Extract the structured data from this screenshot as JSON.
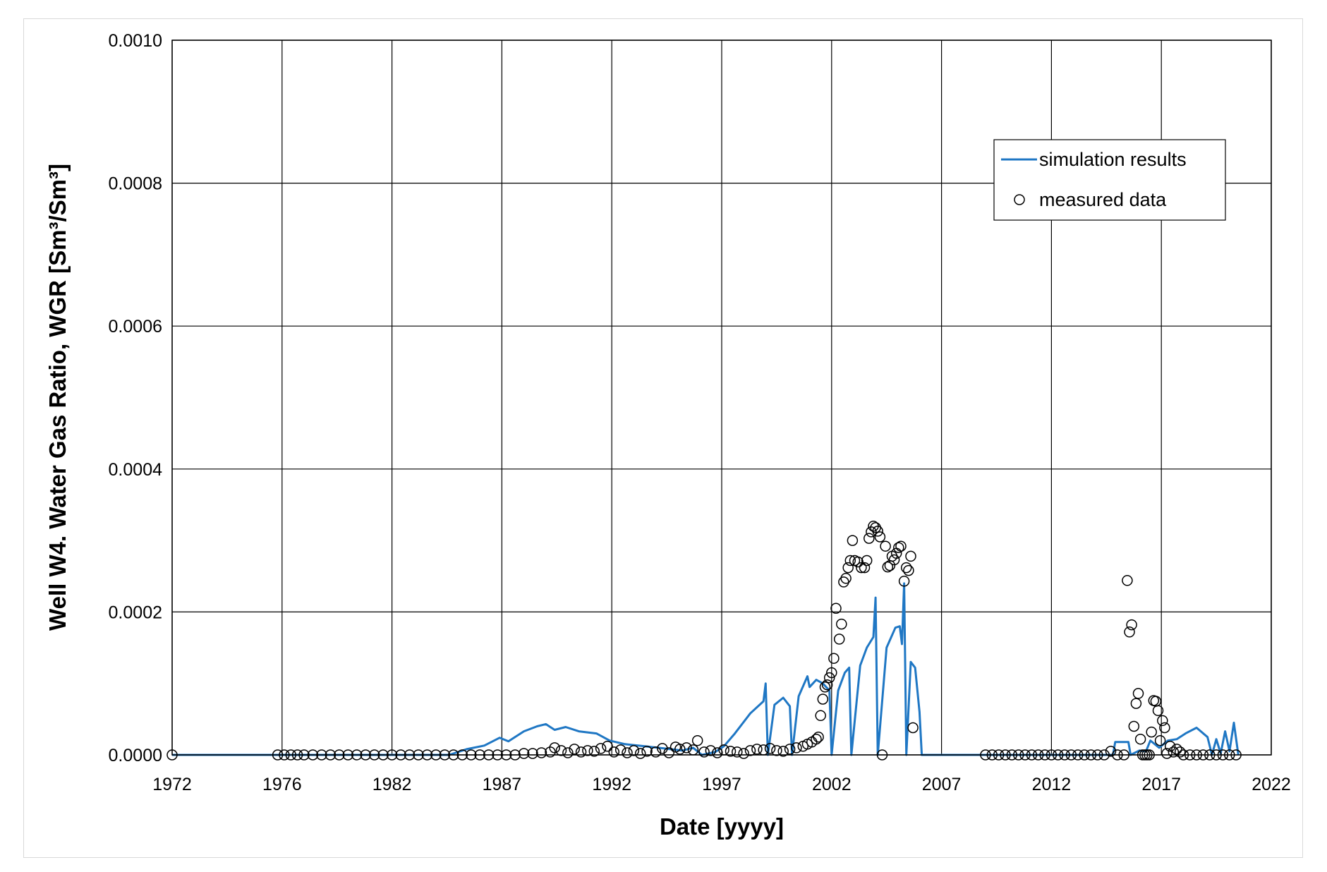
{
  "chart_data": {
    "type": "line",
    "title": "",
    "xlabel": "Date [yyyy]",
    "ylabel": "Well W4. Water Gas Ratio, WGR [Sm³/Sm³]",
    "xlim": [
      1972,
      2022
    ],
    "ylim": [
      0,
      0.001
    ],
    "x_ticks": [
      "1972",
      "1976",
      "1982",
      "1987",
      "1992",
      "1997",
      "2002",
      "2007",
      "2012",
      "2017",
      "2022"
    ],
    "y_ticks": [
      "0.0000",
      "0.0002",
      "0.0004",
      "0.0006",
      "0.0008",
      "0.0010"
    ],
    "grid": true,
    "legend_position": "top-right",
    "series": [
      {
        "name": "simulation results",
        "style": "line",
        "color": "#1f77c4",
        "points": [
          [
            1972.0,
            0
          ],
          [
            1976.9,
            0
          ],
          [
            1984.6,
            0
          ],
          [
            1985.4,
            8e-06
          ],
          [
            1986.2,
            1.3e-05
          ],
          [
            1986.9,
            2.4e-05
          ],
          [
            1987.3,
            1.9e-05
          ],
          [
            1988.0,
            3.3e-05
          ],
          [
            1988.6,
            4e-05
          ],
          [
            1989.0,
            4.3e-05
          ],
          [
            1989.4,
            3.5e-05
          ],
          [
            1989.9,
            3.9e-05
          ],
          [
            1990.5,
            3.3e-05
          ],
          [
            1991.3,
            3e-05
          ],
          [
            1991.9,
            2e-05
          ],
          [
            1992.6,
            1.5e-05
          ],
          [
            1993.5,
            1.2e-05
          ],
          [
            1994.4,
            9e-06
          ],
          [
            1995.2,
            6e-06
          ],
          [
            1995.7,
            1e-05
          ],
          [
            1996.1,
            0.0
          ],
          [
            1996.7,
            4e-06
          ],
          [
            1997.1,
            1.2e-05
          ],
          [
            1997.6,
            3e-05
          ],
          [
            1998.3,
            5.8e-05
          ],
          [
            1998.9,
            7.5e-05
          ],
          [
            1999.0,
            0.0001
          ],
          [
            1999.1,
            0.0
          ],
          [
            1999.4,
            7e-05
          ],
          [
            1999.8,
            8e-05
          ],
          [
            2000.1,
            6.8e-05
          ],
          [
            2000.2,
            0.0
          ],
          [
            2000.5,
            8.2e-05
          ],
          [
            2000.9,
            0.00011
          ],
          [
            2001.0,
            9.5e-05
          ],
          [
            2001.3,
            0.000105
          ],
          [
            2001.6,
            0.0001
          ],
          [
            2001.9,
            9e-05
          ],
          [
            2002.0,
            0.0
          ],
          [
            2002.3,
            9e-05
          ],
          [
            2002.6,
            0.000115
          ],
          [
            2002.8,
            0.000122
          ],
          [
            2002.9,
            0.0
          ],
          [
            2003.3,
            0.000125
          ],
          [
            2003.6,
            0.00015
          ],
          [
            2003.9,
            0.000165
          ],
          [
            2004.0,
            0.00022
          ],
          [
            2004.1,
            0.0
          ],
          [
            2004.5,
            0.00015
          ],
          [
            2004.9,
            0.000178
          ],
          [
            2005.1,
            0.00018
          ],
          [
            2005.2,
            0.000155
          ],
          [
            2005.3,
            0.00024
          ],
          [
            2005.4,
            0.0
          ],
          [
            2005.6,
            0.00013
          ],
          [
            2005.8,
            0.000122
          ],
          [
            2006.0,
            6e-05
          ],
          [
            2006.1,
            0.0
          ],
          [
            2009.0,
            0.0
          ],
          [
            2014.8,
            0.0
          ],
          [
            2014.9,
            1.8e-05
          ],
          [
            2015.5,
            1.8e-05
          ],
          [
            2015.6,
            0.0
          ],
          [
            2016.0,
            6e-06
          ],
          [
            2016.3,
            5e-06
          ],
          [
            2016.5,
            2e-05
          ],
          [
            2016.9,
            1e-05
          ],
          [
            2017.3,
            2e-05
          ],
          [
            2017.7,
            2.2e-05
          ],
          [
            2018.1,
            3e-05
          ],
          [
            2018.6,
            3.8e-05
          ],
          [
            2019.1,
            2.5e-05
          ],
          [
            2019.3,
            0.0
          ],
          [
            2019.5,
            2.2e-05
          ],
          [
            2019.7,
            2e-06
          ],
          [
            2019.9,
            3.3e-05
          ],
          [
            2020.1,
            5e-06
          ],
          [
            2020.3,
            4.5e-05
          ],
          [
            2020.5,
            0.0
          ]
        ]
      },
      {
        "name": "measured data",
        "style": "marker",
        "marker": "open-circle",
        "color": "#000000",
        "points": [
          [
            1972.0,
            0
          ],
          [
            1976.8,
            0
          ],
          [
            1977.1,
            0
          ],
          [
            1977.4,
            0
          ],
          [
            1977.7,
            0
          ],
          [
            1978.0,
            0
          ],
          [
            1978.4,
            0
          ],
          [
            1978.8,
            0
          ],
          [
            1979.2,
            0
          ],
          [
            1979.6,
            0
          ],
          [
            1980.0,
            0
          ],
          [
            1980.4,
            0
          ],
          [
            1980.8,
            0
          ],
          [
            1981.2,
            0
          ],
          [
            1981.6,
            0
          ],
          [
            1982.0,
            0
          ],
          [
            1982.4,
            0
          ],
          [
            1982.8,
            0
          ],
          [
            1983.2,
            0
          ],
          [
            1983.6,
            0
          ],
          [
            1984.0,
            0
          ],
          [
            1984.4,
            0
          ],
          [
            1984.8,
            0
          ],
          [
            1985.2,
            0
          ],
          [
            1985.6,
            0
          ],
          [
            1986.0,
            0
          ],
          [
            1986.4,
            0
          ],
          [
            1986.8,
            0
          ],
          [
            1987.2,
            0
          ],
          [
            1987.6,
            0
          ],
          [
            1988.0,
            2e-06
          ],
          [
            1988.4,
            2e-06
          ],
          [
            1988.8,
            3e-06
          ],
          [
            1989.2,
            4e-06
          ],
          [
            1989.4,
            1e-05
          ],
          [
            1989.7,
            6e-06
          ],
          [
            1990.0,
            3e-06
          ],
          [
            1990.3,
            8e-06
          ],
          [
            1990.6,
            4e-06
          ],
          [
            1990.9,
            6e-06
          ],
          [
            1991.2,
            5e-06
          ],
          [
            1991.5,
            9e-06
          ],
          [
            1991.8,
            1.2e-05
          ],
          [
            1992.1,
            4e-06
          ],
          [
            1992.4,
            7e-06
          ],
          [
            1992.7,
            3e-06
          ],
          [
            1993.0,
            6e-06
          ],
          [
            1993.3,
            2e-06
          ],
          [
            1993.6,
            5e-06
          ],
          [
            1994.0,
            4e-06
          ],
          [
            1994.3,
            9e-06
          ],
          [
            1994.6,
            3e-06
          ],
          [
            1994.9,
            1.1e-05
          ],
          [
            1995.1,
            8e-06
          ],
          [
            1995.4,
            1e-05
          ],
          [
            1995.7,
            7e-06
          ],
          [
            1995.9,
            2e-05
          ],
          [
            1996.2,
            4e-06
          ],
          [
            1996.5,
            6e-06
          ],
          [
            1996.8,
            3e-06
          ],
          [
            1997.1,
            7e-06
          ],
          [
            1997.4,
            5e-06
          ],
          [
            1997.7,
            4e-06
          ],
          [
            1998.0,
            2e-06
          ],
          [
            1998.3,
            6e-06
          ],
          [
            1998.6,
            8e-06
          ],
          [
            1998.9,
            7e-06
          ],
          [
            1999.2,
            9e-06
          ],
          [
            1999.5,
            6e-06
          ],
          [
            1999.8,
            5e-06
          ],
          [
            2000.1,
            8e-06
          ],
          [
            2000.4,
            1e-05
          ],
          [
            2000.7,
            1.2e-05
          ],
          [
            2000.9,
            1.5e-05
          ],
          [
            2001.1,
            1.8e-05
          ],
          [
            2001.3,
            2.2e-05
          ],
          [
            2001.4,
            2.5e-05
          ],
          [
            2001.5,
            5.5e-05
          ],
          [
            2001.6,
            7.8e-05
          ],
          [
            2001.7,
            9.5e-05
          ],
          [
            2001.8,
            9.8e-05
          ],
          [
            2001.9,
            0.000108
          ],
          [
            2002.0,
            0.000115
          ],
          [
            2002.1,
            0.000135
          ],
          [
            2002.2,
            0.000205
          ],
          [
            2002.35,
            0.000162
          ],
          [
            2002.45,
            0.000183
          ],
          [
            2002.55,
            0.000242
          ],
          [
            2002.65,
            0.000247
          ],
          [
            2002.75,
            0.000262
          ],
          [
            2002.85,
            0.000272
          ],
          [
            2002.95,
            0.0003
          ],
          [
            2003.05,
            0.000272
          ],
          [
            2003.2,
            0.00027
          ],
          [
            2003.35,
            0.000262
          ],
          [
            2003.5,
            0.000262
          ],
          [
            2003.6,
            0.000272
          ],
          [
            2003.7,
            0.000303
          ],
          [
            2003.8,
            0.000312
          ],
          [
            2003.9,
            0.00032
          ],
          [
            2004.0,
            0.000318
          ],
          [
            2004.1,
            0.000313
          ],
          [
            2004.2,
            0.000305
          ],
          [
            2004.3,
            0.0
          ],
          [
            2004.45,
            0.000292
          ],
          [
            2004.55,
            0.000263
          ],
          [
            2004.65,
            0.000265
          ],
          [
            2004.75,
            0.000278
          ],
          [
            2004.85,
            0.000273
          ],
          [
            2004.95,
            0.000282
          ],
          [
            2005.05,
            0.00029
          ],
          [
            2005.15,
            0.000292
          ],
          [
            2005.3,
            0.000243
          ],
          [
            2005.4,
            0.000262
          ],
          [
            2005.5,
            0.000258
          ],
          [
            2005.6,
            0.000278
          ],
          [
            2005.7,
            3.8e-05
          ],
          [
            2009.0,
            0
          ],
          [
            2009.3,
            0
          ],
          [
            2009.6,
            0
          ],
          [
            2009.9,
            0
          ],
          [
            2010.2,
            0
          ],
          [
            2010.5,
            0
          ],
          [
            2010.8,
            0
          ],
          [
            2011.1,
            0
          ],
          [
            2011.4,
            0
          ],
          [
            2011.7,
            0
          ],
          [
            2012.0,
            0
          ],
          [
            2012.3,
            0
          ],
          [
            2012.6,
            0
          ],
          [
            2012.9,
            0
          ],
          [
            2013.2,
            0
          ],
          [
            2013.5,
            0
          ],
          [
            2013.8,
            0
          ],
          [
            2014.1,
            0
          ],
          [
            2014.4,
            0
          ],
          [
            2014.7,
            5e-06
          ],
          [
            2015.0,
            0
          ],
          [
            2015.3,
            0
          ],
          [
            2015.45,
            0.000244
          ],
          [
            2015.55,
            0.000172
          ],
          [
            2015.65,
            0.000182
          ],
          [
            2015.75,
            4e-05
          ],
          [
            2015.85,
            7.2e-05
          ],
          [
            2015.95,
            8.6e-05
          ],
          [
            2016.05,
            2.2e-05
          ],
          [
            2016.15,
            0.0
          ],
          [
            2016.25,
            0.0
          ],
          [
            2016.35,
            0.0
          ],
          [
            2016.45,
            0.0
          ],
          [
            2016.55,
            3.2e-05
          ],
          [
            2016.65,
            7.6e-05
          ],
          [
            2016.75,
            7.5e-05
          ],
          [
            2016.85,
            6.2e-05
          ],
          [
            2016.95,
            2e-05
          ],
          [
            2017.05,
            4.8e-05
          ],
          [
            2017.15,
            3.8e-05
          ],
          [
            2017.25,
            2e-06
          ],
          [
            2017.4,
            1.2e-05
          ],
          [
            2017.55,
            4e-06
          ],
          [
            2017.7,
            8e-06
          ],
          [
            2017.85,
            4e-06
          ],
          [
            2018.0,
            0
          ],
          [
            2018.3,
            0
          ],
          [
            2018.6,
            0
          ],
          [
            2018.9,
            0
          ],
          [
            2019.2,
            0
          ],
          [
            2019.5,
            0
          ],
          [
            2019.8,
            0
          ],
          [
            2020.1,
            0
          ],
          [
            2020.4,
            0
          ]
        ]
      }
    ]
  }
}
